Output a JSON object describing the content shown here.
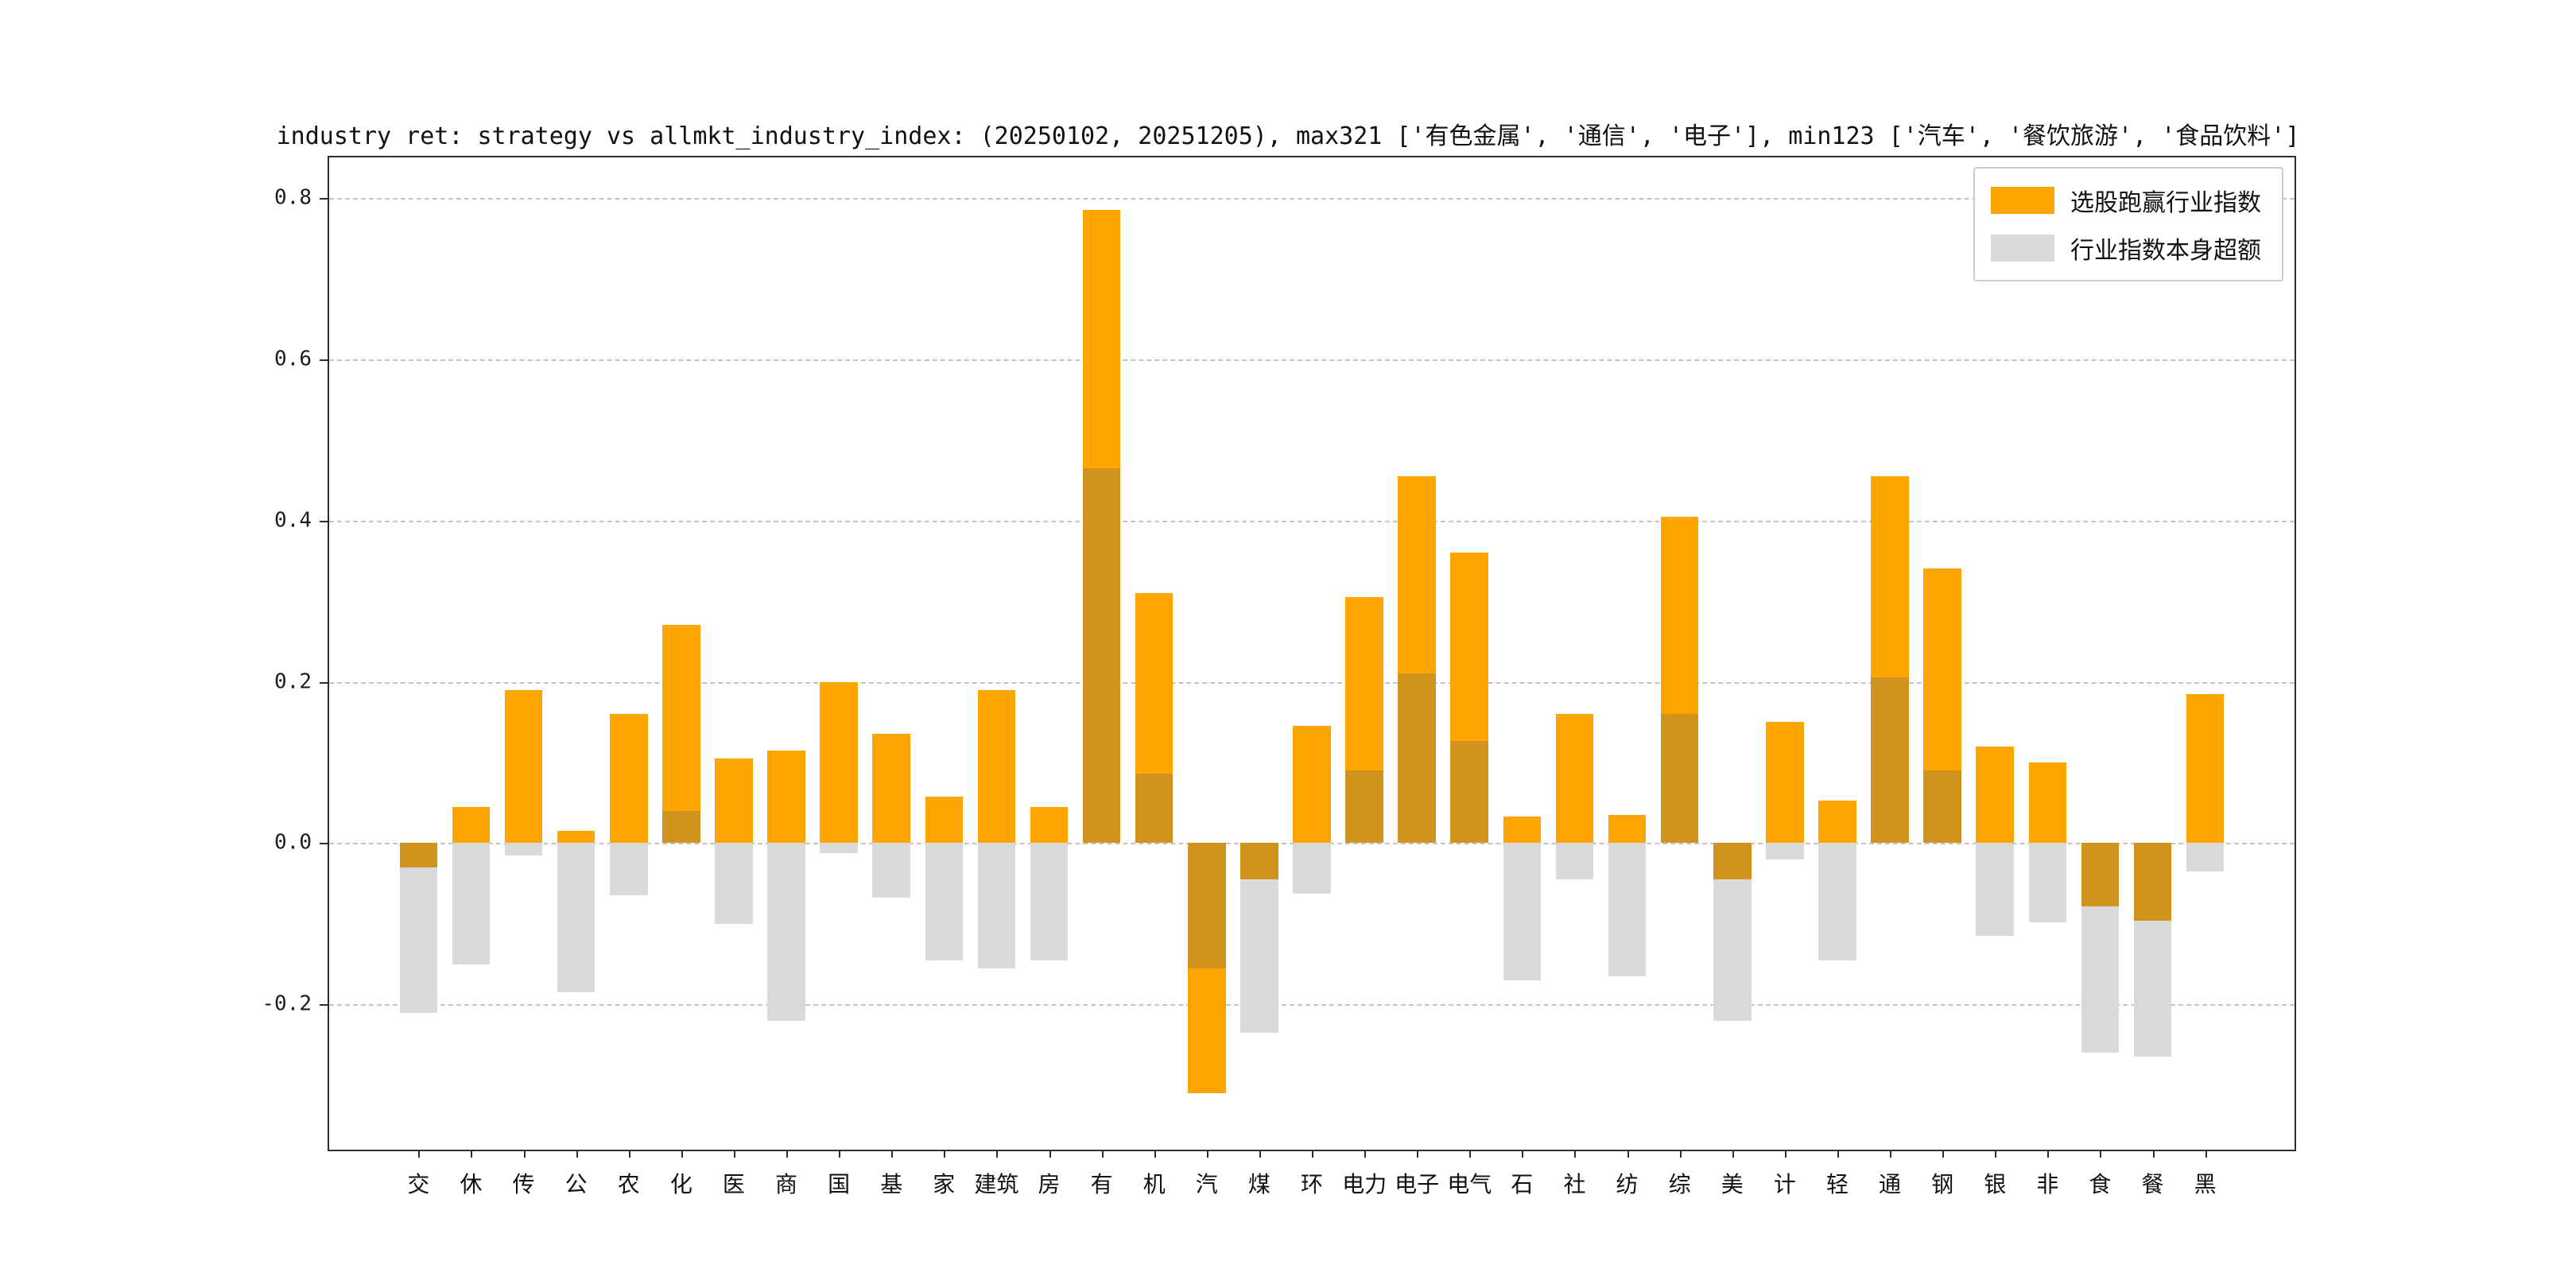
{
  "figure": {
    "title": "industry ret: strategy vs allmkt_industry_index: (20250102, 20251205), max321 ['有色金属', '通信', '电子'], min123 ['汽车', '餐饮旅游', '食品饮料']"
  },
  "chart_data": {
    "type": "bar",
    "title": "industry ret: strategy vs allmkt_industry_index: (20250102, 20251205), max321 ['有色金属', '通信', '电子'], min123 ['汽车', '餐饮旅游', '食品饮料']",
    "categories": [
      "交",
      "休",
      "传",
      "公",
      "农",
      "化",
      "医",
      "商",
      "国",
      "基",
      "家",
      "建筑",
      "房",
      "有",
      "机",
      "汽",
      "煤",
      "环",
      "电力",
      "电子",
      "电气",
      "石",
      "社",
      "纺",
      "综",
      "美",
      "计",
      "轻",
      "通",
      "钢",
      "银",
      "非",
      "食",
      "餐",
      "黑"
    ],
    "series": [
      {
        "name": "选股跑赢行业指数",
        "color": "#FFA500",
        "values": [
          -0.03,
          0.045,
          0.19,
          0.015,
          0.16,
          0.27,
          0.105,
          0.115,
          0.2,
          0.135,
          0.058,
          0.19,
          0.045,
          0.785,
          0.31,
          -0.31,
          -0.045,
          0.145,
          0.305,
          0.455,
          0.36,
          0.033,
          0.16,
          0.035,
          0.405,
          -0.045,
          0.15,
          0.053,
          0.455,
          0.34,
          0.12,
          0.1,
          -0.078,
          -0.096,
          0.185
        ]
      },
      {
        "name": "行业指数本身超额",
        "color": "#D9D9D9",
        "values": [
          -0.21,
          -0.15,
          -0.015,
          -0.185,
          -0.065,
          0.04,
          -0.1,
          -0.22,
          -0.012,
          -0.068,
          -0.145,
          -0.155,
          -0.145,
          0.465,
          0.086,
          -0.155,
          -0.235,
          -0.063,
          0.09,
          0.21,
          0.127,
          -0.17,
          -0.045,
          -0.165,
          0.16,
          -0.22,
          -0.02,
          -0.145,
          0.205,
          0.09,
          -0.115,
          -0.098,
          -0.26,
          -0.265,
          -0.035
        ]
      }
    ],
    "overlap_color": "#D0941E",
    "ylim": [
      -0.38,
      0.85
    ],
    "yticks": [
      -0.2,
      0.0,
      0.2,
      0.4,
      0.6,
      0.8
    ],
    "grid": "dashed-horizontal",
    "legend_position": "upper right"
  }
}
